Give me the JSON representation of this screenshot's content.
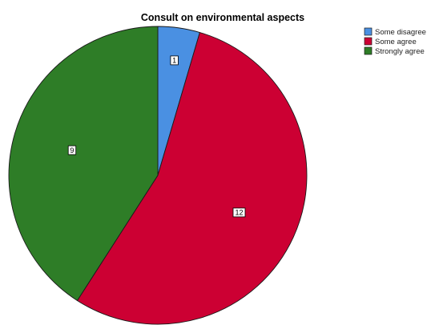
{
  "chart_data": {
    "type": "pie",
    "title": "Consult on environmental aspects",
    "categories": [
      "Some disagree",
      "Some agree",
      "Strongly agree"
    ],
    "values": [
      1,
      12,
      9
    ],
    "data_labels": [
      "1",
      "12",
      "9"
    ],
    "colors": [
      "#4a90e2",
      "#cc0033",
      "#2e7d27"
    ],
    "start_angle_deg": 0,
    "direction": "clockwise",
    "legend_position": "top-right"
  }
}
